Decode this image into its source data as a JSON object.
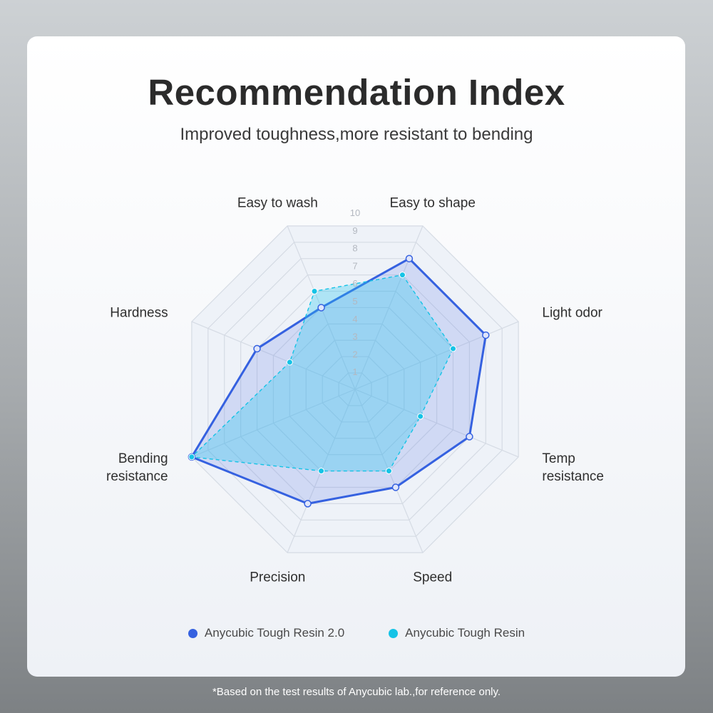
{
  "title": "Recommendation Index",
  "subtitle": "Improved toughness,more resistant to bending",
  "footnote": "*Based on the test results of Anycubic lab.,for reference only.",
  "chart_data": {
    "type": "radar",
    "scale_max": 10,
    "ticks": [
      "1",
      "2",
      "3",
      "4",
      "5",
      "6",
      "7",
      "8",
      "9",
      "10"
    ],
    "axes": [
      [
        "Easy to shape"
      ],
      [
        "Light odor"
      ],
      [
        "Temp",
        "resistance"
      ],
      [
        "Speed"
      ],
      [
        "Precision"
      ],
      [
        "Bending",
        "resistance"
      ],
      [
        "Hardness"
      ],
      [
        "Easy to wash"
      ]
    ],
    "series": [
      {
        "name": "Anycubic Tough Resin 2.0",
        "color": "#3561e0",
        "values": [
          8,
          8,
          7,
          6,
          7,
          10,
          6,
          5
        ]
      },
      {
        "name": "Anycubic Tough Resin",
        "color": "#15c3e6",
        "values": [
          7,
          6,
          4,
          5,
          5,
          10,
          4,
          6
        ]
      }
    ],
    "grid": true
  }
}
